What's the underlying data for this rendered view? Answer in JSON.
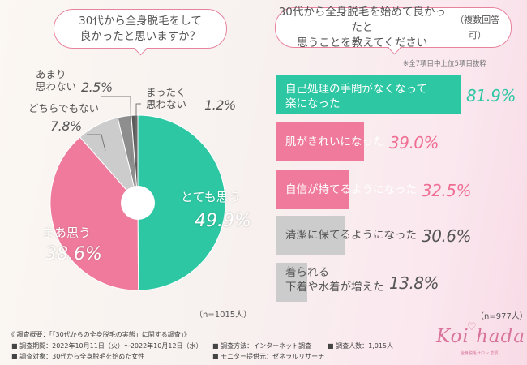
{
  "colors": {
    "teal": "#2ec7a3",
    "pink": "#ef7a9c",
    "light_gray": "#cccccc",
    "mid_gray": "#8e8e8e",
    "dark_gray": "#5b5b5b",
    "pct_teal": "#2ec7a3",
    "pct_pink": "#ef6f94",
    "text": "#555555"
  },
  "q1": {
    "text": "30代から全身脱毛をして\n良かったと思いますか？"
  },
  "q2": {
    "text": "30代から全身脱毛を始めて良かったと\n思うことを教えてください",
    "suffix": "（複数回答可）"
  },
  "chart_data": [
    {
      "type": "pie",
      "title": "30代から全身脱毛をして良かったと思いますか？",
      "categories": [
        "とても思う",
        "まあ思う",
        "どちらでもない",
        "あまり思わない",
        "まったく思わない"
      ],
      "values": [
        49.9,
        38.6,
        7.8,
        2.5,
        1.2
      ],
      "labels": {
        "very": "とても思う",
        "very_pct": "49.9%",
        "some": "まあ思う",
        "some_pct": "38.6%",
        "neutral": "どちらでもない",
        "neutral_pct": "7.8%",
        "little": "あまり\n思わない",
        "little_pct": "2.5%",
        "none": "まったく\n思わない",
        "none_pct": "1.2%"
      },
      "sample": "（n=1015人）"
    },
    {
      "type": "bar",
      "title": "30代から全身脱毛を始めて良かったと思うことを教えてください（複数回答可）",
      "note": "※全7項目中上位5項目抜粋",
      "categories": [
        "自己処理の手間がなくなって\n楽になった",
        "肌がきれいになった",
        "自信が持てるようになった",
        "清潔に保てるようになった",
        "着られる\n下着や水着が増えた"
      ],
      "values": [
        81.9,
        39.0,
        32.5,
        30.6,
        13.8
      ],
      "pct_labels": [
        "81.9%",
        "39.0%",
        "32.5%",
        "30.6%",
        "13.8%"
      ],
      "xlim": [
        0,
        100
      ],
      "sample": "（n=977人）"
    }
  ],
  "footer": {
    "overview": "《 調査概要：「「30代からの全身脱毛の実態」に関する調査」》",
    "period": "■ 調査期間：2022年10月11日（火）～2022年10月12日（水）",
    "method": "■ 調査方法：インターネット調査",
    "count": "■ 調査人数：1,015人",
    "target": "■ 調査対象：30代から全身脱毛を始めた女性",
    "provider": "■ モニター提供元：ゼネラルリサーチ"
  },
  "logo": {
    "name": "Koi hada",
    "heart": "♡",
    "sub": "全身脱毛サロン 恋肌"
  }
}
